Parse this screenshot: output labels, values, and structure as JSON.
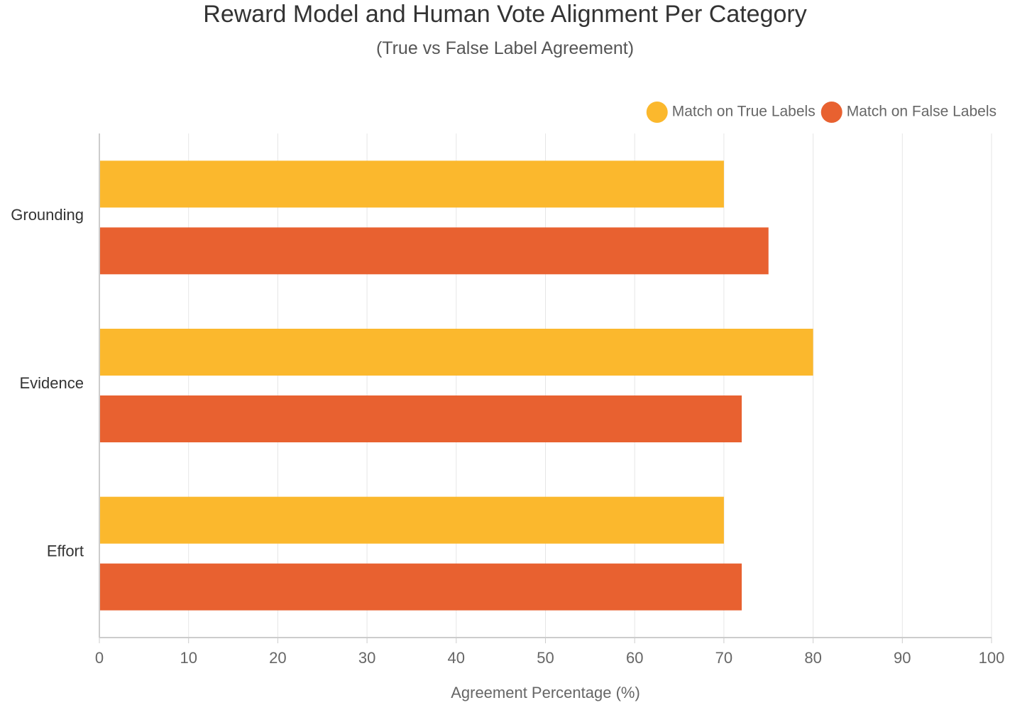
{
  "chart_data": {
    "type": "bar",
    "orientation": "horizontal",
    "title": "Reward Model and Human Vote Alignment Per Category",
    "subtitle": "(True vs False Label Agreement)",
    "categories": [
      "Grounding",
      "Evidence",
      "Effort"
    ],
    "series": [
      {
        "name": "Match on True Labels",
        "color": "#FBB82D",
        "values": [
          70,
          80,
          70
        ]
      },
      {
        "name": "Match on False Labels",
        "color": "#E86130",
        "values": [
          75,
          72,
          72
        ]
      }
    ],
    "xlabel": "Agreement Percentage (%)",
    "ylabel": "",
    "xlim": [
      0,
      100
    ],
    "xticks": [
      0,
      10,
      20,
      30,
      40,
      50,
      60,
      70,
      80,
      90,
      100
    ],
    "grid": true,
    "legend_position": "top-right"
  }
}
